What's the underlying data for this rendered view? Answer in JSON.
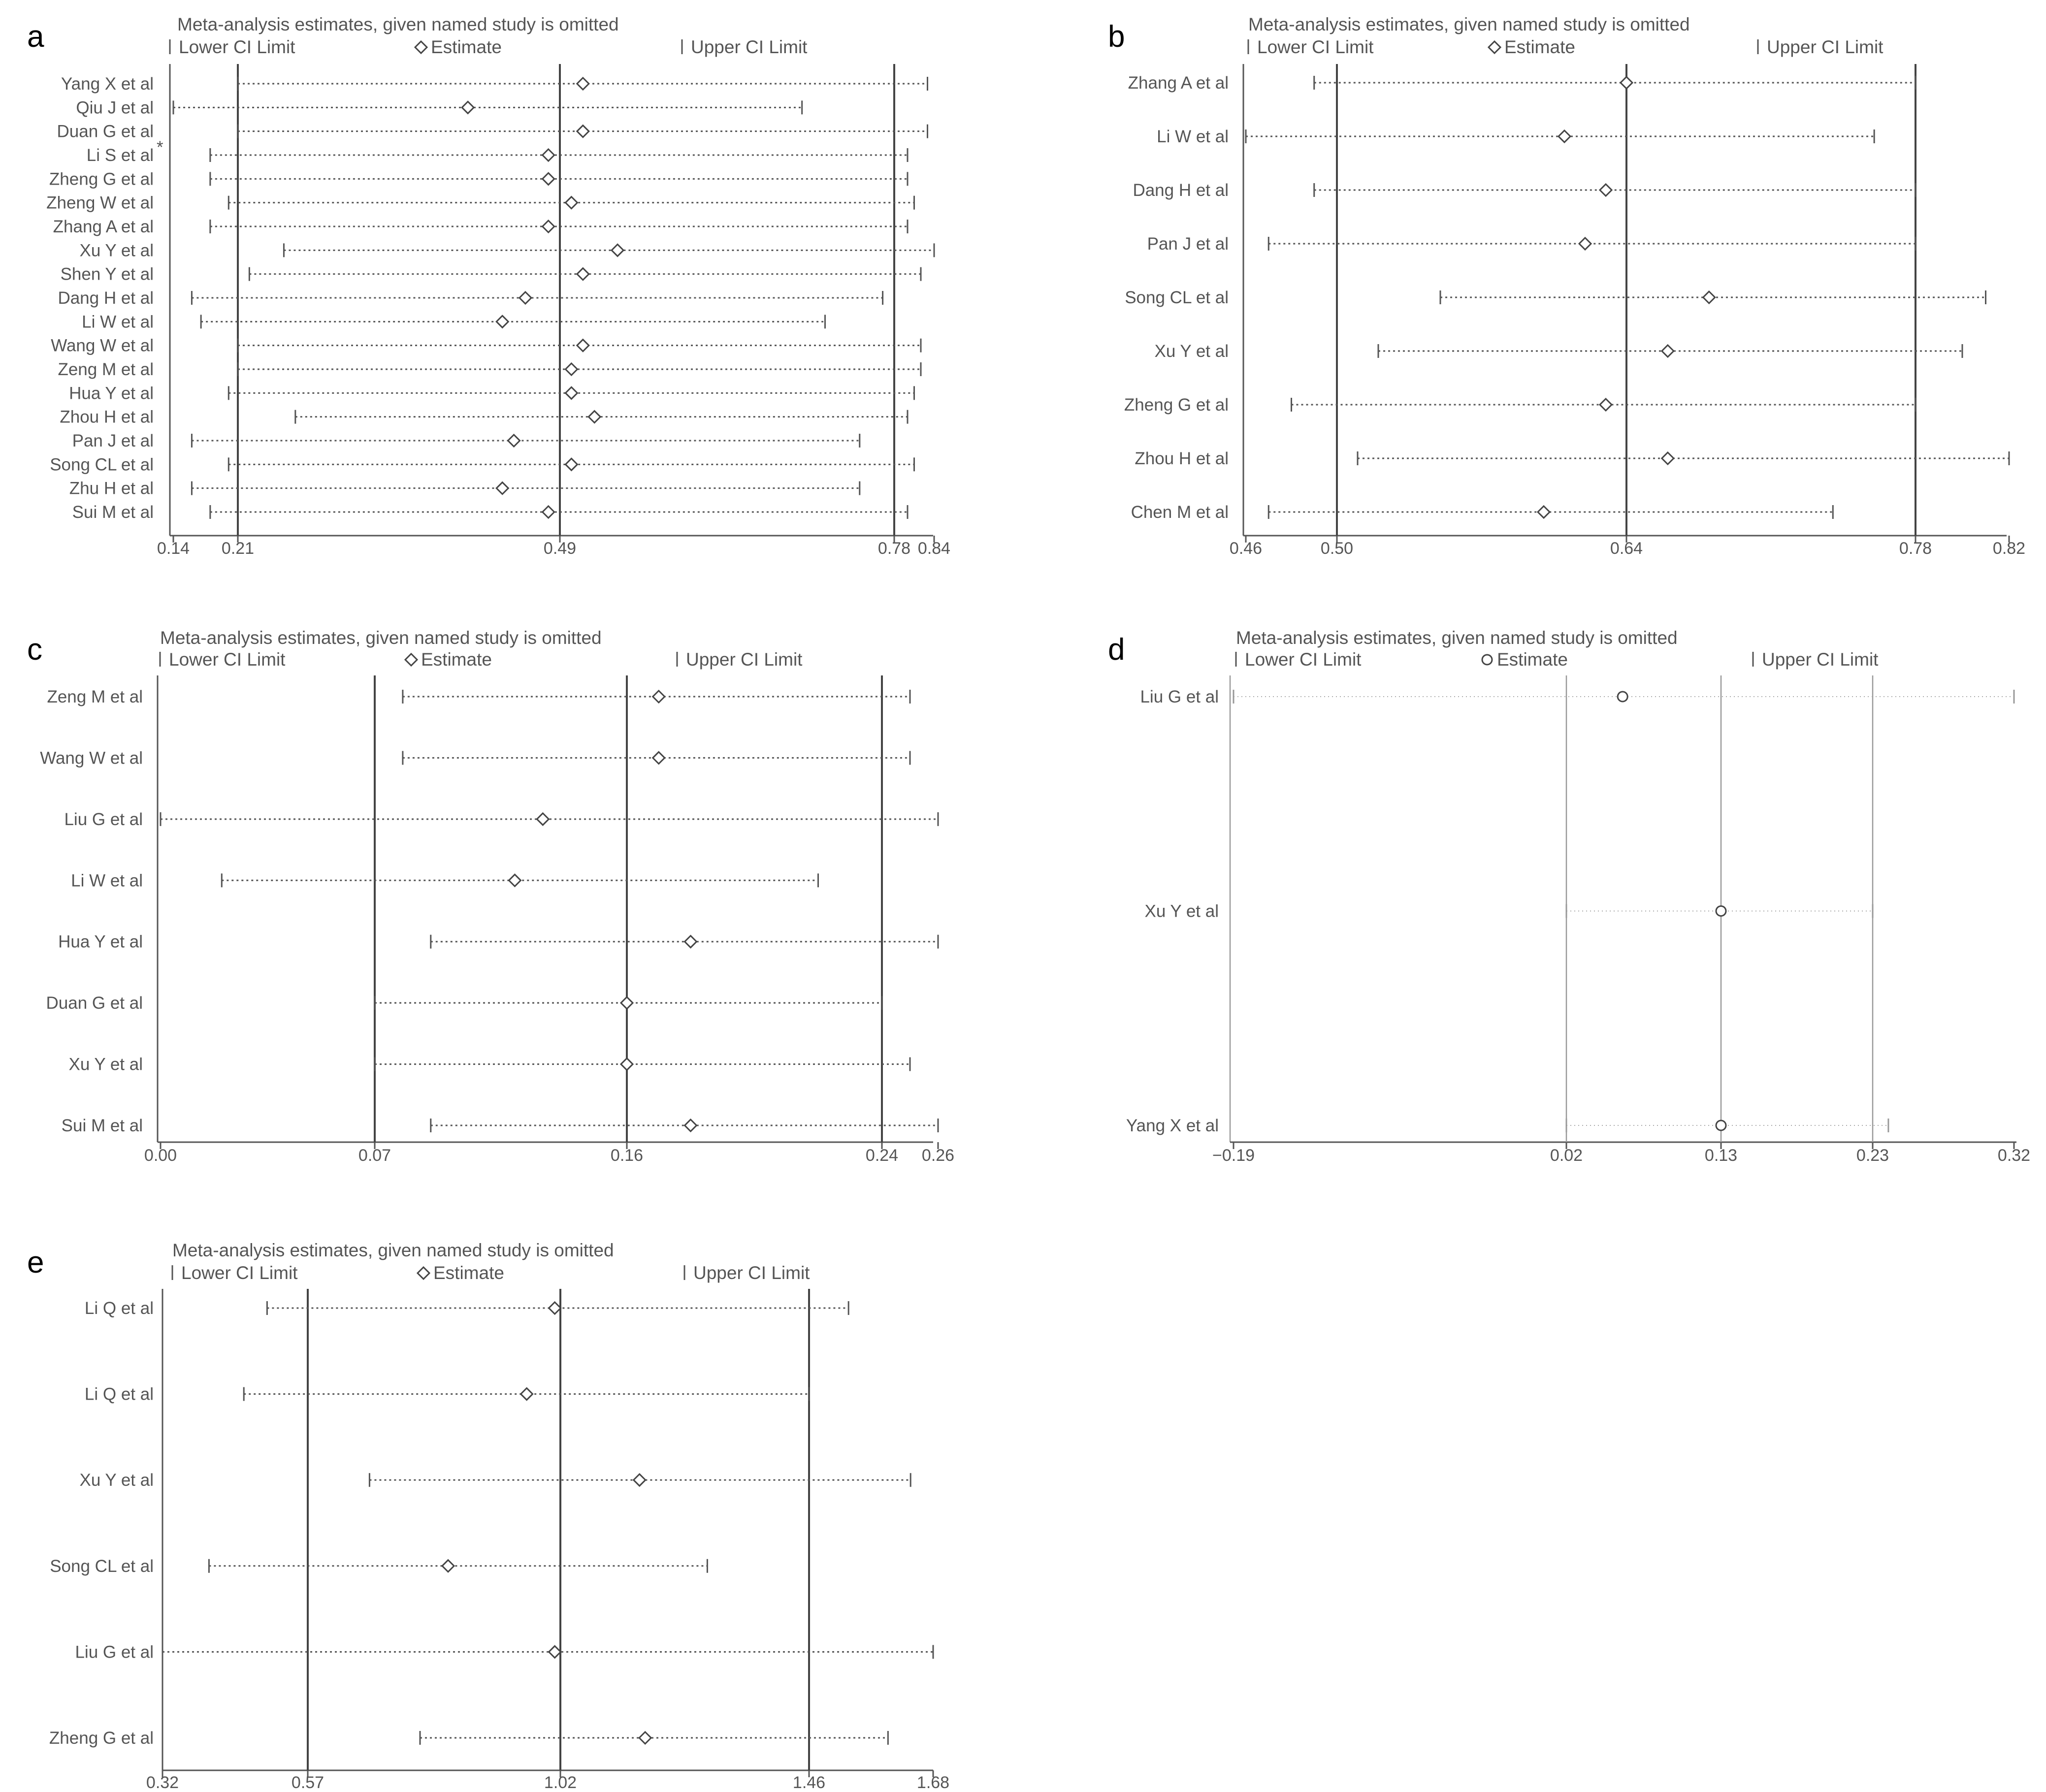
{
  "figure": {
    "legend_lower": "Lower CI Limit",
    "legend_estimate": "Estimate",
    "legend_upper": "Upper CI Limit",
    "line_color": "#555555",
    "dot_color": "#444444"
  },
  "chart_data": [
    {
      "panel": "a",
      "type": "sensitivity-forest",
      "title": "Meta-analysis estimates, given named study is omitted",
      "marker": "diamond",
      "xlim": [
        0.14,
        0.84
      ],
      "ticks": [
        0.14,
        0.21,
        0.49,
        0.78,
        0.84
      ],
      "tick_labels": [
        "0.14",
        "0.21",
        "0.49",
        "0.78",
        "0.84"
      ],
      "ref_lines": [
        0.21,
        0.49,
        0.78
      ],
      "annotation": "*",
      "studies": [
        {
          "name": "Yang X et al",
          "lower": 0.21,
          "estimate": 0.51,
          "upper": 0.83
        },
        {
          "name": "Qiu J et al",
          "lower": 0.14,
          "estimate": 0.41,
          "upper": 0.7
        },
        {
          "name": "Duan G et al",
          "lower": 0.21,
          "estimate": 0.51,
          "upper": 0.83
        },
        {
          "name": "Li S et al",
          "lower": 0.18,
          "estimate": 0.48,
          "upper": 0.8
        },
        {
          "name": "Zheng G et al",
          "lower": 0.18,
          "estimate": 0.48,
          "upper": 0.8
        },
        {
          "name": "Zheng W et al",
          "lower": 0.2,
          "estimate": 0.5,
          "upper": 0.81
        },
        {
          "name": "Zhang A et al",
          "lower": 0.18,
          "estimate": 0.48,
          "upper": 0.8
        },
        {
          "name": "Xu Y et al",
          "lower": 0.25,
          "estimate": 0.54,
          "upper": 0.84
        },
        {
          "name": "Shen Y  et al",
          "lower": 0.22,
          "estimate": 0.51,
          "upper": 0.82
        },
        {
          "name": "Dang H et al",
          "lower": 0.16,
          "estimate": 0.46,
          "upper": 0.77
        },
        {
          "name": "Li W et al",
          "lower": 0.17,
          "estimate": 0.44,
          "upper": 0.72
        },
        {
          "name": "Wang W et al",
          "lower": 0.21,
          "estimate": 0.51,
          "upper": 0.82
        },
        {
          "name": "Zeng M et al",
          "lower": 0.21,
          "estimate": 0.5,
          "upper": 0.82
        },
        {
          "name": "Hua Y et al",
          "lower": 0.2,
          "estimate": 0.5,
          "upper": 0.81
        },
        {
          "name": "Zhou H et al",
          "lower": 0.26,
          "estimate": 0.52,
          "upper": 0.8
        },
        {
          "name": "Pan J et al",
          "lower": 0.16,
          "estimate": 0.45,
          "upper": 0.75
        },
        {
          "name": "Song CL et al",
          "lower": 0.2,
          "estimate": 0.5,
          "upper": 0.81
        },
        {
          "name": "Zhu H et al",
          "lower": 0.16,
          "estimate": 0.44,
          "upper": 0.75
        },
        {
          "name": "Sui M et al",
          "lower": 0.18,
          "estimate": 0.48,
          "upper": 0.8
        }
      ]
    },
    {
      "panel": "b",
      "type": "sensitivity-forest",
      "title": "Meta-analysis estimates, given named study is omitted",
      "marker": "diamond",
      "xlim": [
        0.46,
        0.82
      ],
      "ticks": [
        0.46,
        0.5,
        0.64,
        0.78,
        0.82
      ],
      "tick_labels": [
        "0.46",
        "0.50",
        "0.64",
        "0.78",
        "0.82"
      ],
      "ref_lines": [
        0.5,
        0.64,
        0.78
      ],
      "studies": [
        {
          "name": "Zhang A et al",
          "lower": 0.49,
          "estimate": 0.64,
          "upper": 0.78
        },
        {
          "name": "Li W et al",
          "lower": 0.46,
          "estimate": 0.61,
          "upper": 0.76
        },
        {
          "name": "Dang H et al",
          "lower": 0.49,
          "estimate": 0.63,
          "upper": 0.78
        },
        {
          "name": "Pan J et al",
          "lower": 0.47,
          "estimate": 0.62,
          "upper": 0.78
        },
        {
          "name": "Song CL et al",
          "lower": 0.55,
          "estimate": 0.68,
          "upper": 0.81
        },
        {
          "name": "Xu Y et al",
          "lower": 0.52,
          "estimate": 0.66,
          "upper": 0.8
        },
        {
          "name": "Zheng G et al",
          "lower": 0.48,
          "estimate": 0.63,
          "upper": 0.78
        },
        {
          "name": "Zhou H et al",
          "lower": 0.51,
          "estimate": 0.66,
          "upper": 0.82
        },
        {
          "name": "Chen M et al",
          "lower": 0.47,
          "estimate": 0.6,
          "upper": 0.74
        }
      ]
    },
    {
      "panel": "c",
      "type": "sensitivity-forest",
      "title": "Meta-analysis estimates, given named study is omitted",
      "marker": "diamond",
      "xlim": [
        0.0,
        0.26
      ],
      "ticks": [
        0.0,
        0.07,
        0.16,
        0.24,
        0.26
      ],
      "tick_labels": [
        "0.00",
        "0.07",
        "0.16",
        "0.24",
        "0.26"
      ],
      "ref_lines": [
        0.07,
        0.16,
        0.24
      ],
      "studies": [
        {
          "name": "Zeng M et al",
          "lower": 0.08,
          "estimate": 0.17,
          "upper": 0.25
        },
        {
          "name": "Wang W et al",
          "lower": 0.08,
          "estimate": 0.17,
          "upper": 0.25
        },
        {
          "name": "Liu G et al",
          "lower": 0.0,
          "estimate": 0.13,
          "upper": 0.26
        },
        {
          "name": "Li W et al",
          "lower": 0.02,
          "estimate": 0.12,
          "upper": 0.22
        },
        {
          "name": "Hua Y et al",
          "lower": 0.09,
          "estimate": 0.18,
          "upper": 0.26
        },
        {
          "name": "Duan G et al",
          "lower": 0.07,
          "estimate": 0.16,
          "upper": 0.24
        },
        {
          "name": "Xu Y et al",
          "lower": 0.07,
          "estimate": 0.16,
          "upper": 0.25
        },
        {
          "name": "Sui M et al",
          "lower": 0.09,
          "estimate": 0.18,
          "upper": 0.26
        }
      ]
    },
    {
      "panel": "d",
      "type": "sensitivity-forest",
      "title": "Meta-analysis estimates, given named study is omitted",
      "marker": "circle",
      "xlim": [
        -0.19,
        0.32
      ],
      "ticks": [
        -0.19,
        0.02,
        0.13,
        0.23,
        0.32
      ],
      "tick_labels": [
        "−0.19",
        "0.02",
        "0.13",
        "0.23",
        "0.32"
      ],
      "ref_lines": [
        0.02,
        0.13,
        0.23
      ],
      "studies": [
        {
          "name": "Liu G et al",
          "lower": -0.19,
          "estimate": 0.06,
          "upper": 0.32
        },
        {
          "name": "Xu Y et al",
          "lower": 0.02,
          "estimate": 0.13,
          "upper": 0.23
        },
        {
          "name": "Yang X et al",
          "lower": 0.02,
          "estimate": 0.13,
          "upper": 0.24
        }
      ]
    },
    {
      "panel": "e",
      "type": "sensitivity-forest",
      "title": "Meta-analysis estimates, given named study is omitted",
      "marker": "diamond",
      "xlim": [
        0.32,
        1.68
      ],
      "ticks": [
        0.32,
        0.57,
        1.02,
        1.46,
        1.68
      ],
      "tick_labels": [
        "0.32",
        "0.57",
        "1.02",
        "1.46",
        "1.68"
      ],
      "ref_lines": [
        0.57,
        1.02,
        1.46
      ],
      "studies": [
        {
          "name": "Li Q et al",
          "lower": 0.5,
          "estimate": 1.01,
          "upper": 1.53
        },
        {
          "name": "Li Q et al",
          "lower": 0.46,
          "estimate": 0.96,
          "upper": 1.46
        },
        {
          "name": "Xu Y et al",
          "lower": 0.68,
          "estimate": 1.16,
          "upper": 1.64
        },
        {
          "name": "Song CL et al",
          "lower": 0.4,
          "estimate": 0.82,
          "upper": 1.28
        },
        {
          "name": "Liu G et al",
          "lower": 0.32,
          "estimate": 1.01,
          "upper": 1.68
        },
        {
          "name": "Zheng G et al",
          "lower": 0.77,
          "estimate": 1.17,
          "upper": 1.6
        }
      ]
    }
  ]
}
